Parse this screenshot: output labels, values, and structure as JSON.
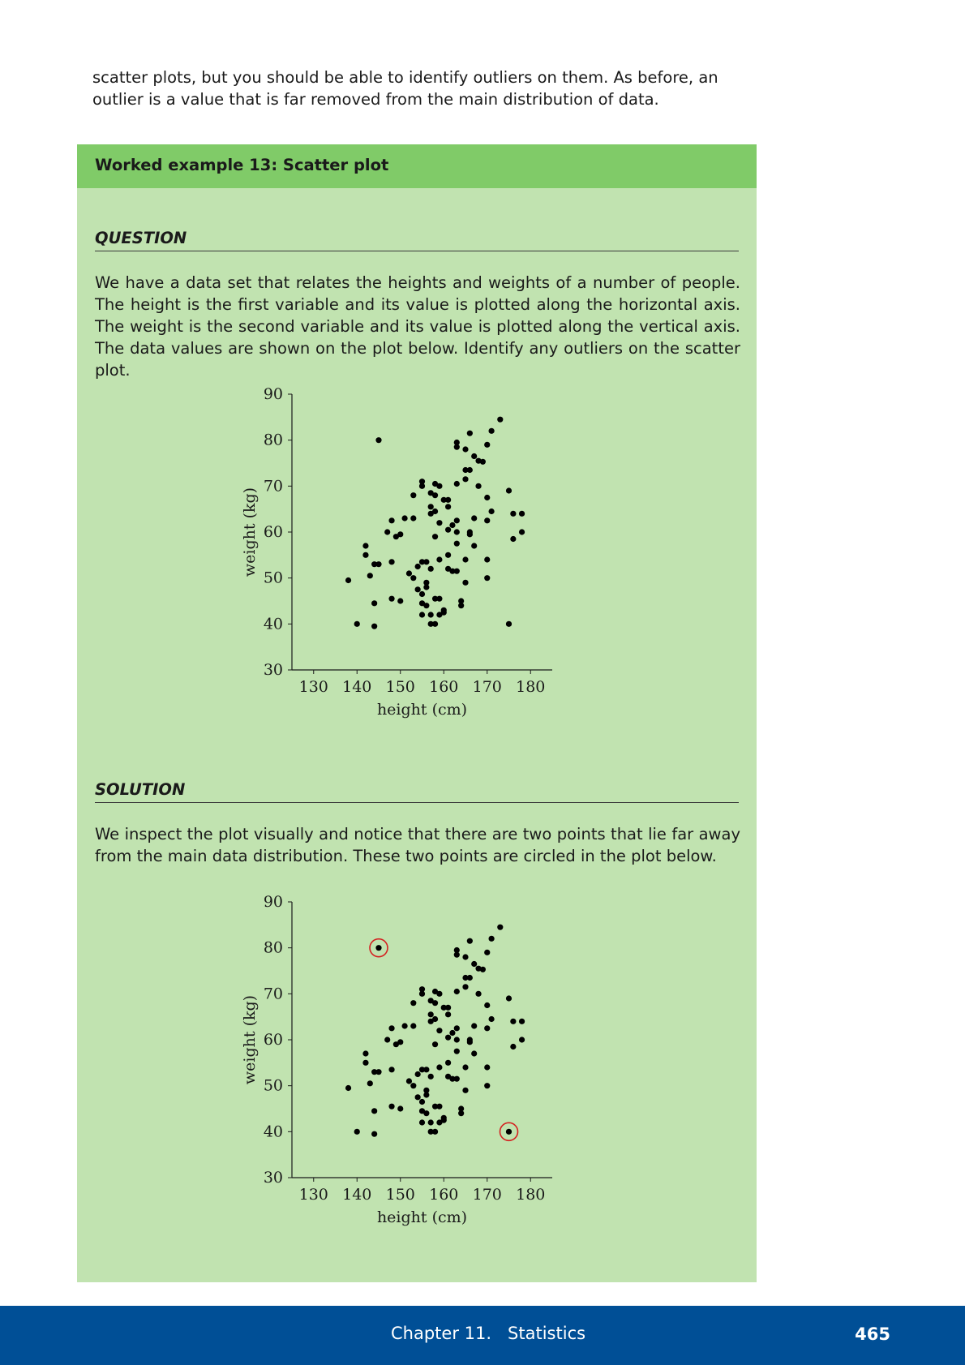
{
  "intro_text": "scatter plots, but you should be able to identify outliers on them. As before, an outlier is a value that is far removed from the main distribution of data.",
  "example": {
    "title": "Worked example 13:  Scatter plot",
    "question_heading": "QUESTION",
    "question_text": "We have a data set that relates the heights and weights of a number of people.  The height is the first variable and its value is plotted along the horizontal axis. The weight is the second variable and its value is plotted along the vertical axis. The data values are shown on the plot below. Identify any outliers on the scatter plot.",
    "solution_heading": "SOLUTION",
    "solution_text": "We inspect the plot visually and notice that there are two points that lie far away from the main data distribution. These two points are circled in the plot below."
  },
  "colors": {
    "box_background": "#c1e3b0",
    "box_header": "#80cb68",
    "footer_background": "#004f96",
    "outlier_circle": "#d42020",
    "point": "#000000"
  },
  "footer": {
    "chapter": "Chapter 11.   Statistics",
    "page_number": "465"
  },
  "chart_data": [
    {
      "type": "scatter",
      "title": "",
      "xlabel": "height (cm)",
      "ylabel": "weight (kg)",
      "xlim": [
        125,
        185
      ],
      "ylim": [
        30,
        90
      ],
      "xticks": [
        130,
        140,
        150,
        160,
        170,
        180
      ],
      "yticks": [
        30,
        40,
        50,
        60,
        70,
        80,
        90
      ],
      "grid": false,
      "points": [
        [
          145,
          80
        ],
        [
          173,
          84.5
        ],
        [
          171,
          82
        ],
        [
          166,
          81.5
        ],
        [
          163,
          79.5
        ],
        [
          163,
          78.5
        ],
        [
          165,
          78
        ],
        [
          170,
          79
        ],
        [
          167,
          76.5
        ],
        [
          168,
          75.5
        ],
        [
          169,
          75.3
        ],
        [
          165,
          73.5
        ],
        [
          166,
          73.5
        ],
        [
          165,
          71.5
        ],
        [
          155,
          71
        ],
        [
          155,
          70
        ],
        [
          158,
          70.5
        ],
        [
          159,
          70
        ],
        [
          163,
          70.5
        ],
        [
          168,
          70
        ],
        [
          153,
          68
        ],
        [
          157,
          68.5
        ],
        [
          158,
          68
        ],
        [
          160,
          67
        ],
        [
          161,
          67
        ],
        [
          170,
          67.5
        ],
        [
          175,
          69
        ],
        [
          157,
          65.5
        ],
        [
          158,
          64.5
        ],
        [
          161,
          65.5
        ],
        [
          157,
          64
        ],
        [
          171,
          64.5
        ],
        [
          176,
          64
        ],
        [
          178,
          64
        ],
        [
          148,
          62.5
        ],
        [
          151,
          63
        ],
        [
          153,
          63
        ],
        [
          159,
          62
        ],
        [
          162,
          61.5
        ],
        [
          163,
          62.5
        ],
        [
          167,
          63
        ],
        [
          170,
          62.5
        ],
        [
          147,
          60
        ],
        [
          149,
          59
        ],
        [
          150,
          59.5
        ],
        [
          161,
          60.5
        ],
        [
          163,
          60
        ],
        [
          166,
          60
        ],
        [
          166,
          59.5
        ],
        [
          178,
          60
        ],
        [
          158,
          59
        ],
        [
          176,
          58.5
        ],
        [
          142,
          57
        ],
        [
          163,
          57.5
        ],
        [
          167,
          57
        ],
        [
          142,
          55
        ],
        [
          159,
          54
        ],
        [
          161,
          55
        ],
        [
          155,
          53.5
        ],
        [
          156,
          53.5
        ],
        [
          165,
          54
        ],
        [
          170,
          54
        ],
        [
          144,
          53
        ],
        [
          145,
          53
        ],
        [
          148,
          53.5
        ],
        [
          154,
          52.5
        ],
        [
          157,
          52
        ],
        [
          161,
          52
        ],
        [
          162,
          51.5
        ],
        [
          163,
          51.5
        ],
        [
          152,
          51
        ],
        [
          153,
          50
        ],
        [
          143,
          50.5
        ],
        [
          170,
          50
        ],
        [
          138,
          49.5
        ],
        [
          156,
          49
        ],
        [
          156,
          48
        ],
        [
          165,
          49
        ],
        [
          154,
          47.5
        ],
        [
          155,
          46.5
        ],
        [
          148,
          45.5
        ],
        [
          150,
          45
        ],
        [
          155,
          44.5
        ],
        [
          156,
          44
        ],
        [
          158,
          45.5
        ],
        [
          159,
          45.5
        ],
        [
          164,
          45
        ],
        [
          164,
          44
        ],
        [
          144,
          44.5
        ],
        [
          155,
          42
        ],
        [
          157,
          42
        ],
        [
          159,
          42
        ],
        [
          160,
          43
        ],
        [
          160,
          42.5
        ],
        [
          140,
          40
        ],
        [
          144,
          39.5
        ],
        [
          157,
          40
        ],
        [
          158,
          40
        ],
        [
          175,
          40
        ]
      ],
      "outliers": []
    },
    {
      "type": "scatter",
      "title": "",
      "xlabel": "height (cm)",
      "ylabel": "weight (kg)",
      "xlim": [
        125,
        185
      ],
      "ylim": [
        30,
        90
      ],
      "xticks": [
        130,
        140,
        150,
        160,
        170,
        180
      ],
      "yticks": [
        30,
        40,
        50,
        60,
        70,
        80,
        90
      ],
      "grid": false,
      "points": [
        [
          145,
          80
        ],
        [
          173,
          84.5
        ],
        [
          171,
          82
        ],
        [
          166,
          81.5
        ],
        [
          163,
          79.5
        ],
        [
          163,
          78.5
        ],
        [
          165,
          78
        ],
        [
          170,
          79
        ],
        [
          167,
          76.5
        ],
        [
          168,
          75.5
        ],
        [
          169,
          75.3
        ],
        [
          165,
          73.5
        ],
        [
          166,
          73.5
        ],
        [
          165,
          71.5
        ],
        [
          155,
          71
        ],
        [
          155,
          70
        ],
        [
          158,
          70.5
        ],
        [
          159,
          70
        ],
        [
          163,
          70.5
        ],
        [
          168,
          70
        ],
        [
          153,
          68
        ],
        [
          157,
          68.5
        ],
        [
          158,
          68
        ],
        [
          160,
          67
        ],
        [
          161,
          67
        ],
        [
          170,
          67.5
        ],
        [
          175,
          69
        ],
        [
          157,
          65.5
        ],
        [
          158,
          64.5
        ],
        [
          161,
          65.5
        ],
        [
          157,
          64
        ],
        [
          171,
          64.5
        ],
        [
          176,
          64
        ],
        [
          178,
          64
        ],
        [
          148,
          62.5
        ],
        [
          151,
          63
        ],
        [
          153,
          63
        ],
        [
          159,
          62
        ],
        [
          162,
          61.5
        ],
        [
          163,
          62.5
        ],
        [
          167,
          63
        ],
        [
          170,
          62.5
        ],
        [
          147,
          60
        ],
        [
          149,
          59
        ],
        [
          150,
          59.5
        ],
        [
          161,
          60.5
        ],
        [
          163,
          60
        ],
        [
          166,
          60
        ],
        [
          166,
          59.5
        ],
        [
          178,
          60
        ],
        [
          158,
          59
        ],
        [
          176,
          58.5
        ],
        [
          142,
          57
        ],
        [
          163,
          57.5
        ],
        [
          167,
          57
        ],
        [
          142,
          55
        ],
        [
          159,
          54
        ],
        [
          161,
          55
        ],
        [
          155,
          53.5
        ],
        [
          156,
          53.5
        ],
        [
          165,
          54
        ],
        [
          170,
          54
        ],
        [
          144,
          53
        ],
        [
          145,
          53
        ],
        [
          148,
          53.5
        ],
        [
          154,
          52.5
        ],
        [
          157,
          52
        ],
        [
          161,
          52
        ],
        [
          162,
          51.5
        ],
        [
          163,
          51.5
        ],
        [
          152,
          51
        ],
        [
          153,
          50
        ],
        [
          143,
          50.5
        ],
        [
          170,
          50
        ],
        [
          138,
          49.5
        ],
        [
          156,
          49
        ],
        [
          156,
          48
        ],
        [
          165,
          49
        ],
        [
          154,
          47.5
        ],
        [
          155,
          46.5
        ],
        [
          148,
          45.5
        ],
        [
          150,
          45
        ],
        [
          155,
          44.5
        ],
        [
          156,
          44
        ],
        [
          158,
          45.5
        ],
        [
          159,
          45.5
        ],
        [
          164,
          45
        ],
        [
          164,
          44
        ],
        [
          144,
          44.5
        ],
        [
          155,
          42
        ],
        [
          157,
          42
        ],
        [
          159,
          42
        ],
        [
          160,
          43
        ],
        [
          160,
          42.5
        ],
        [
          140,
          40
        ],
        [
          144,
          39.5
        ],
        [
          157,
          40
        ],
        [
          158,
          40
        ],
        [
          175,
          40
        ]
      ],
      "outliers": [
        [
          145,
          80
        ],
        [
          175,
          40
        ]
      ]
    }
  ]
}
